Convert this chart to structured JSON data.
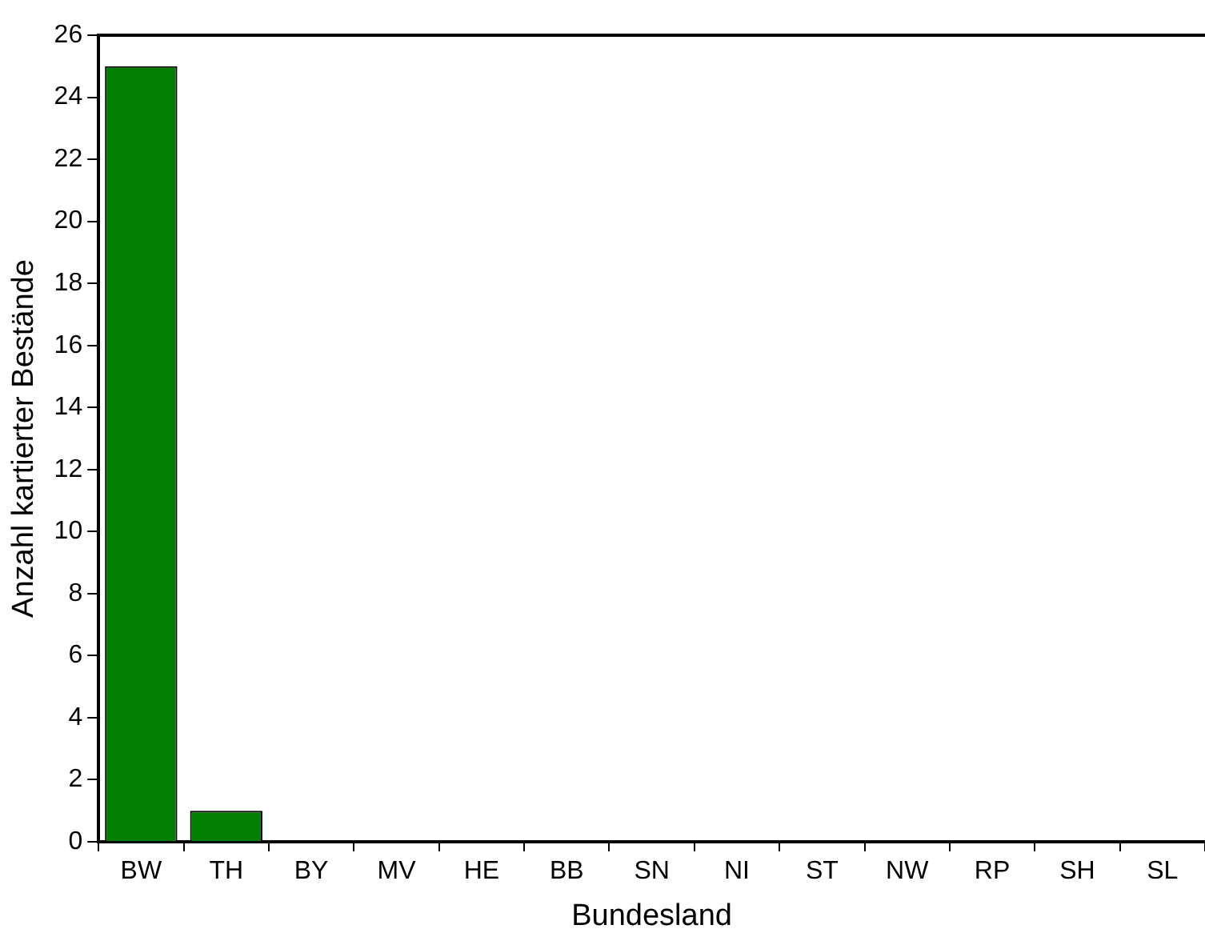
{
  "chart_data": {
    "type": "bar",
    "xlabel": "Bundesland",
    "ylabel": "Anzahl kartierter Bestände",
    "categories": [
      "BW",
      "TH",
      "BY",
      "MV",
      "HE",
      "BB",
      "SN",
      "NI",
      "ST",
      "NW",
      "RP",
      "SH",
      "SL"
    ],
    "values": [
      25,
      1,
      0,
      0,
      0,
      0,
      0,
      0,
      0,
      0,
      0,
      0,
      0
    ],
    "color": "#007f00",
    "ylim": [
      0,
      26
    ],
    "yticks": [
      0,
      2,
      4,
      6,
      8,
      10,
      12,
      14,
      16,
      18,
      20,
      22,
      24,
      26
    ],
    "grid": false,
    "legend": false
  }
}
